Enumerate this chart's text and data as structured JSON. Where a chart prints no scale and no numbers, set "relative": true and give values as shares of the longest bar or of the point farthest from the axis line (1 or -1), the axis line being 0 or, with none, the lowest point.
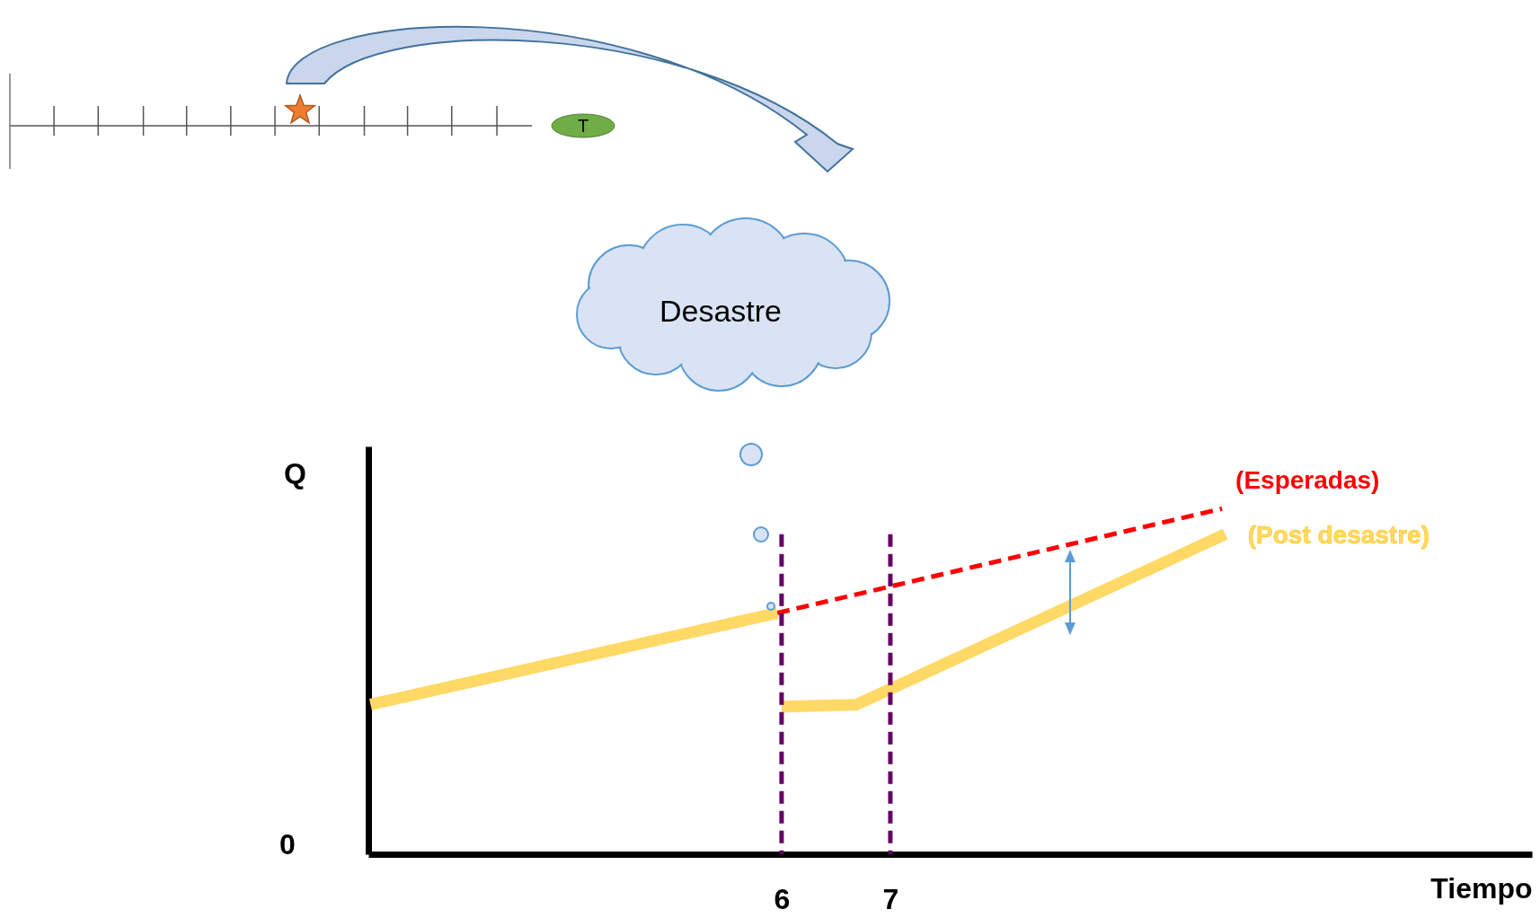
{
  "chart_data": {
    "type": "line",
    "relative": true,
    "xlabel": "Tiempo",
    "ylabel": "Q",
    "xlim": [
      2.2,
      12.9
    ],
    "xticks": [
      6,
      7
    ],
    "grid": false,
    "series": [
      {
        "name": "(Esperadas)",
        "color": "#ff0000",
        "line_style": "dashed",
        "x": [
          5.96,
          10.05
        ],
        "values": [
          0.698,
          1
        ]
      },
      {
        "color": "#ffd966",
        "line_style": "solid",
        "x": [
          2.22,
          5.96
        ],
        "values": [
          0.433,
          0.698
        ]
      },
      {
        "name": "(Post desastre)",
        "color": "#ffd966",
        "line_style": "solid",
        "x": [
          6,
          6.69,
          10.08
        ],
        "values": [
          0.427,
          0.433,
          0.926
        ]
      }
    ],
    "ref_lines": [
      {
        "axis": "x",
        "value": 6,
        "color": "#660066",
        "line_style": "dashed"
      },
      {
        "axis": "x",
        "value": 7,
        "color": "#660066",
        "line_style": "dashed"
      }
    ],
    "annotations": [
      "Desastre",
      "T",
      "0"
    ]
  }
}
